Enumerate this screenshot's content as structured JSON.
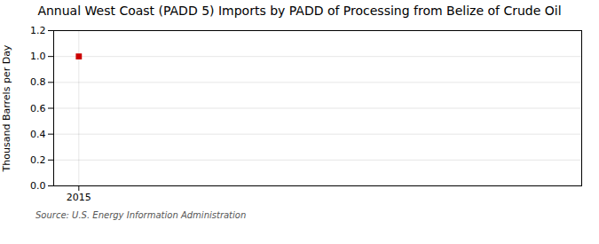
{
  "chart_data": {
    "type": "scatter",
    "title": "Annual West Coast (PADD 5) Imports by PADD of Processing from Belize of Crude Oil",
    "ylabel": "Thousand Barrels per Day",
    "caption": "Source: U.S. Energy Information Administration",
    "x": [
      2015
    ],
    "values": [
      1.0
    ],
    "color": "#cc0000",
    "marker": "square",
    "xlim": [
      2014.7,
      2021.0
    ],
    "xticks": [
      2015
    ],
    "ylim": [
      0.0,
      1.2
    ],
    "yticks": [
      {
        "value": 0.0,
        "label": "0.0"
      },
      0.2,
      0.4,
      0.6,
      0.8,
      {
        "value": 1.0,
        "label": "1.0"
      },
      1.2
    ],
    "grid": true
  }
}
